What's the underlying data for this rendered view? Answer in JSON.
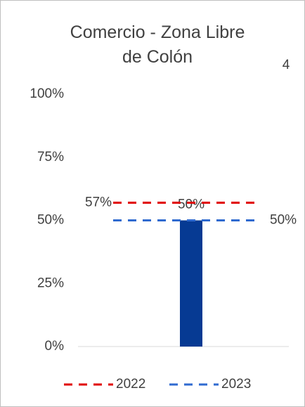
{
  "chart_data": {
    "type": "bar",
    "title": "Comercio - Zona Libre de Colón",
    "annotation": "4",
    "categories": [
      null
    ],
    "values": [
      50
    ],
    "value_labels": [
      "50%"
    ],
    "color": "#063a93",
    "ylim": [
      0,
      100
    ],
    "yticks": [
      {
        "value": 0,
        "label": "0%"
      },
      {
        "value": 25,
        "label": "25%"
      },
      {
        "value": 50,
        "label": "50%"
      },
      {
        "value": 75,
        "label": "75%"
      },
      {
        "value": 100,
        "label": "100%"
      }
    ],
    "reference_lines": [
      {
        "name": "2022",
        "color": "#e00000",
        "value": 57,
        "value_label": "57%"
      },
      {
        "name": "2023",
        "color": "#2f6ad0",
        "value": 50,
        "value_label": "50%"
      }
    ],
    "legend": "bottom"
  }
}
